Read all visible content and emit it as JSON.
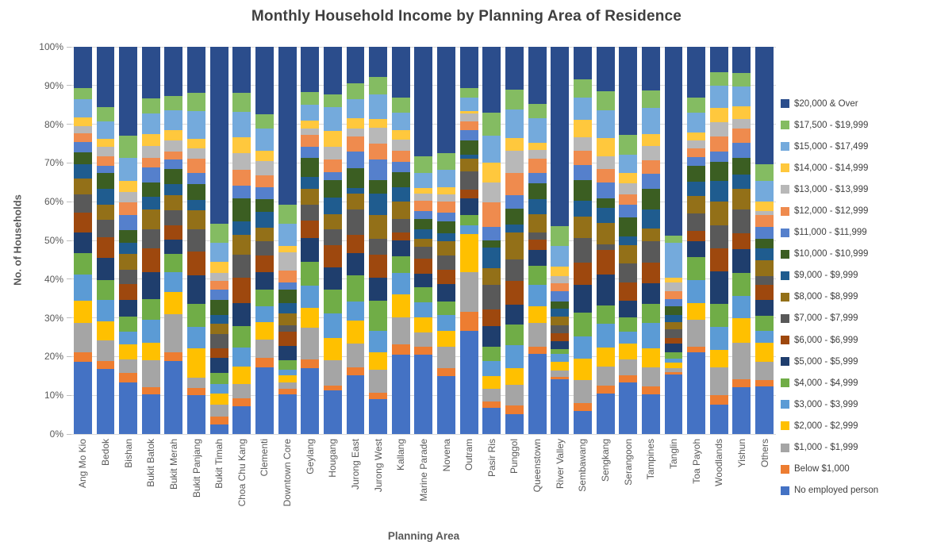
{
  "chart_data": {
    "type": "bar",
    "variant": "stacked-100-percent-vertical",
    "title": "Monthly Household Income by Planning Area of Residence",
    "xlabel": "Planning Area",
    "ylabel": "No. of Households",
    "y_ticks": [
      "0%",
      "10%",
      "20%",
      "30%",
      "40%",
      "50%",
      "60%",
      "70%",
      "80%",
      "90%",
      "100%"
    ],
    "ylim": [
      0,
      100
    ],
    "grid": true,
    "legend_position": "right",
    "legend_order": "top-to-bottom (reverse of stack order)",
    "stack_order": "series listed bottom-to-top of each bar; stacks[i] aligns with categories[i]",
    "categories": [
      "Ang Mo Kio",
      "Bedok",
      "Bishan",
      "Bukit Batok",
      "Bukit Merah",
      "Bukit Panjang",
      "Bukit Timah",
      "Choa Chu Kang",
      "Clementi",
      "Downtown Core",
      "Geylang",
      "Hougang",
      "Jurong East",
      "Jurong West",
      "Kallang",
      "Marine Parade",
      "Novena",
      "Outram",
      "Pasir Ris",
      "Punggol",
      "Queenstown",
      "River Valley",
      "Sembawang",
      "Sengkang",
      "Serangoon",
      "Tampines",
      "Tanglin",
      "Toa Payoh",
      "Woodlands",
      "Yishun",
      "Others"
    ],
    "series": [
      {
        "name": "No employed person",
        "color": "#4472C4"
      },
      {
        "name": "Below $1,000",
        "color": "#ED7D31"
      },
      {
        "name": "$1,000 - $1,999",
        "color": "#A5A5A5"
      },
      {
        "name": "$2,000 - $2,999",
        "color": "#FFC000"
      },
      {
        "name": "$3,000 - $3,999",
        "color": "#5B9BD5"
      },
      {
        "name": "$4,000 - $4,999",
        "color": "#70AD47"
      },
      {
        "name": "$5,000 - $5,999",
        "color": "#1F3E6D"
      },
      {
        "name": "$6,000 - $6,999",
        "color": "#9E480E"
      },
      {
        "name": "$7,000 - $7,999",
        "color": "#595959"
      },
      {
        "name": "$8,000 - $8,999",
        "color": "#937018"
      },
      {
        "name": "$9,000 - $9,999",
        "color": "#1F5C8F"
      },
      {
        "name": "$10,000 - $10,999",
        "color": "#3B5E22"
      },
      {
        "name": "$11,000 - $11,999",
        "color": "#5580CC"
      },
      {
        "name": "$12,000 - $12,999",
        "color": "#EF8B4E"
      },
      {
        "name": "$13,000 - $13,999",
        "color": "#B8B8B8"
      },
      {
        "name": "$14,000 - $14,999",
        "color": "#FFC83D"
      },
      {
        "name": "$15,000 - $17,499",
        "color": "#74AADC"
      },
      {
        "name": "$17,500 - $19,999",
        "color": "#84BC62"
      },
      {
        "name": "$20,000 & Over",
        "color": "#2B4D8C"
      }
    ],
    "stacks": [
      [
        18.6,
        2.5,
        7.5,
        5.8,
        6.7,
        5.6,
        5.3,
        5.1,
        4.8,
        4.0,
        3.7,
        3.1,
        2.7,
        2.2,
        2.0,
        2.2,
        4.6,
        2.9,
        10.7
      ],
      [
        16.8,
        2.0,
        5.3,
        5.0,
        5.6,
        5.1,
        5.6,
        5.5,
        4.4,
        3.9,
        4.1,
        4.1,
        1.8,
        2.5,
        2.4,
        2.2,
        4.4,
        3.8,
        15.5
      ],
      [
        13.4,
        2.4,
        3.4,
        4.1,
        3.1,
        3.9,
        4.5,
        4.1,
        3.7,
        4.0,
        2.9,
        3.3,
        3.8,
        3.4,
        2.6,
        2.9,
        6.0,
        5.7,
        23.0
      ],
      [
        10.3,
        1.7,
        7.0,
        4.6,
        5.8,
        5.3,
        7.1,
        6.0,
        5.0,
        5.1,
        3.2,
        3.8,
        3.9,
        2.3,
        3.2,
        3.1,
        5.3,
        3.9,
        13.2
      ],
      [
        19.0,
        2.3,
        9.9,
        5.8,
        5.1,
        4.8,
        3.8,
        3.6,
        3.9,
        3.9,
        2.9,
        3.9,
        2.5,
        2.2,
        2.9,
        2.6,
        5.1,
        3.8,
        12.8
      ],
      [
        10.0,
        1.7,
        2.7,
        7.5,
        5.5,
        5.8,
        7.3,
        6.1,
        5.5,
        5.0,
        2.5,
        4.1,
        2.9,
        3.6,
        2.7,
        2.4,
        7.0,
        4.6,
        11.8
      ],
      [
        2.5,
        2.0,
        3.0,
        3.0,
        2.3,
        2.9,
        4.0,
        2.4,
        3.6,
        2.7,
        2.2,
        3.9,
        2.7,
        2.2,
        2.2,
        2.7,
        4.9,
        5.0,
        45.6
      ],
      [
        7.0,
        2.0,
        3.7,
        4.4,
        4.8,
        5.5,
        5.8,
        6.5,
        5.8,
        5.1,
        3.5,
        5.8,
        3.2,
        4.1,
        4.1,
        4.1,
        6.4,
        5.0,
        11.6
      ],
      [
        17.3,
        2.5,
        4.8,
        4.6,
        4.1,
        4.4,
        4.4,
        4.4,
        3.8,
        3.4,
        4.1,
        3.3,
        3.2,
        3.1,
        3.6,
        2.7,
        5.9,
        3.7,
        17.5
      ],
      [
        10.2,
        1.5,
        1.7,
        1.8,
        1.4,
        2.5,
        3.7,
        3.6,
        1.7,
        3.1,
        2.5,
        3.6,
        1.8,
        3.1,
        4.6,
        1.7,
        5.8,
        4.9,
        40.7
      ],
      [
        17.1,
        2.2,
        8.1,
        5.3,
        5.6,
        6.3,
        6.0,
        4.6,
        4.0,
        4.2,
        3.1,
        4.8,
        2.9,
        3.1,
        1.6,
        2.2,
        4.0,
        3.4,
        11.6
      ],
      [
        11.3,
        1.4,
        6.5,
        5.8,
        6.5,
        6.1,
        5.8,
        5.8,
        4.0,
        4.0,
        4.4,
        4.6,
        1.9,
        3.4,
        3.3,
        4.1,
        6.3,
        3.3,
        12.3
      ],
      [
        15.2,
        2.0,
        6.1,
        6.0,
        4.9,
        6.7,
        5.8,
        4.7,
        6.5,
        4.1,
        1.5,
        5.0,
        4.4,
        3.8,
        2.0,
        2.7,
        4.9,
        4.1,
        9.4
      ],
      [
        9.1,
        1.6,
        6.0,
        4.5,
        5.7,
        7.8,
        5.9,
        6.0,
        4.1,
        6.3,
        5.5,
        3.6,
        5.3,
        4.2,
        4.1,
        2.3,
        6.4,
        4.4,
        7.9
      ],
      [
        20.6,
        2.8,
        7.0,
        5.9,
        5.6,
        4.3,
        4.2,
        2.0,
        3.4,
        4.6,
        3.8,
        3.9,
        2.6,
        2.9,
        2.9,
        2.4,
        4.6,
        3.9,
        13.2
      ],
      [
        20.6,
        2.1,
        3.7,
        3.9,
        3.9,
        4.0,
        3.5,
        3.8,
        3.1,
        2.0,
        2.5,
        2.7,
        2.0,
        2.7,
        1.8,
        1.6,
        3.8,
        4.4,
        28.4
      ],
      [
        15.1,
        2.0,
        5.6,
        4.0,
        4.2,
        3.4,
        4.5,
        3.7,
        3.8,
        3.6,
        2.2,
        2.9,
        2.3,
        2.9,
        1.9,
        1.8,
        4.6,
        4.3,
        27.5
      ],
      [
        26.8,
        5.0,
        10.2,
        10.0,
        2.2,
        2.7,
        4.3,
        2.3,
        4.8,
        3.4,
        1.0,
        3.7,
        2.6,
        2.4,
        2.0,
        0.5,
        3.6,
        2.4,
        10.8
      ],
      [
        6.9,
        1.5,
        3.4,
        3.4,
        3.9,
        3.6,
        5.4,
        4.4,
        6.4,
        4.3,
        5.5,
        1.9,
        3.5,
        6.3,
        5.3,
        5.1,
        7.0,
        6.1,
        17.1
      ],
      [
        5.0,
        2.2,
        5.3,
        4.4,
        5.8,
        5.2,
        5.2,
        6.0,
        5.5,
        6.8,
        2.0,
        4.0,
        3.6,
        5.7,
        5.5,
        3.4,
        7.3,
        5.0,
        10.9
      ],
      [
        20.9,
        1.8,
        6.2,
        4.3,
        5.7,
        5.0,
        4.1,
        2.6,
        2.0,
        4.6,
        4.0,
        4.2,
        2.6,
        3.7,
        2.3,
        1.8,
        6.4,
        3.9,
        14.8
      ],
      [
        14.1,
        0.7,
        1.5,
        2.3,
        2.1,
        1.2,
        2.1,
        2.0,
        2.1,
        2.2,
        2.0,
        1.9,
        2.7,
        2.0,
        1.8,
        2.5,
        5.4,
        5.1,
        46.3
      ],
      [
        6.0,
        2.0,
        6.0,
        5.5,
        5.8,
        6.1,
        7.2,
        5.8,
        6.5,
        5.4,
        4.1,
        5.5,
        3.8,
        3.7,
        3.6,
        4.4,
        5.8,
        4.8,
        8.4
      ],
      [
        10.3,
        2.1,
        4.8,
        4.8,
        6.1,
        4.6,
        7.8,
        6.2,
        1.5,
        5.4,
        3.8,
        2.4,
        4.1,
        3.4,
        3.3,
        4.6,
        7.1,
        4.8,
        11.3
      ],
      [
        13.4,
        1.7,
        4.1,
        4.1,
        3.1,
        3.7,
        4.3,
        4.7,
        5.0,
        4.6,
        2.2,
        4.9,
        3.4,
        2.7,
        2.7,
        2.7,
        4.8,
        5.1,
        22.7
      ],
      [
        10.3,
        1.9,
        4.9,
        5.0,
        6.5,
        4.9,
        5.4,
        5.2,
        5.5,
        3.3,
        5.0,
        5.3,
        3.8,
        3.4,
        3.8,
        3.1,
        6.7,
        4.4,
        11.3
      ],
      [
        15.4,
        0.7,
        1.0,
        1.3,
        1.1,
        1.6,
        2.3,
        1.4,
        2.3,
        1.8,
        1.9,
        2.2,
        1.8,
        2.2,
        2.2,
        1.2,
        9.0,
        1.8,
        48.9
      ],
      [
        21.1,
        1.6,
        7.0,
        4.3,
        5.9,
        5.9,
        4.2,
        2.6,
        4.6,
        4.6,
        3.6,
        4.1,
        2.3,
        2.3,
        2.0,
        2.0,
        5.2,
        3.9,
        13.2
      ],
      [
        7.5,
        2.5,
        7.1,
        4.5,
        6.0,
        5.9,
        8.4,
        5.9,
        6.0,
        6.1,
        5.5,
        4.8,
        2.7,
        3.8,
        3.7,
        3.8,
        5.7,
        3.4,
        6.6
      ],
      [
        12.0,
        2.2,
        9.3,
        6.3,
        5.8,
        5.9,
        6.1,
        4.1,
        6.1,
        5.5,
        3.6,
        4.3,
        3.9,
        3.6,
        2.5,
        3.2,
        5.2,
        3.4,
        6.8
      ],
      [
        12.4,
        1.6,
        4.6,
        5.0,
        3.0,
        4.0,
        4.0,
        3.9,
        2.4,
        4.0,
        3.2,
        2.5,
        2.9,
        3.1,
        1.2,
        2.3,
        5.5,
        4.3,
        30.3
      ]
    ],
    "colors": {
      "title_text": "#3F3F3F",
      "axis_text": "#595959",
      "legend_text": "#404040",
      "gridline": "#D9D9D9"
    }
  }
}
